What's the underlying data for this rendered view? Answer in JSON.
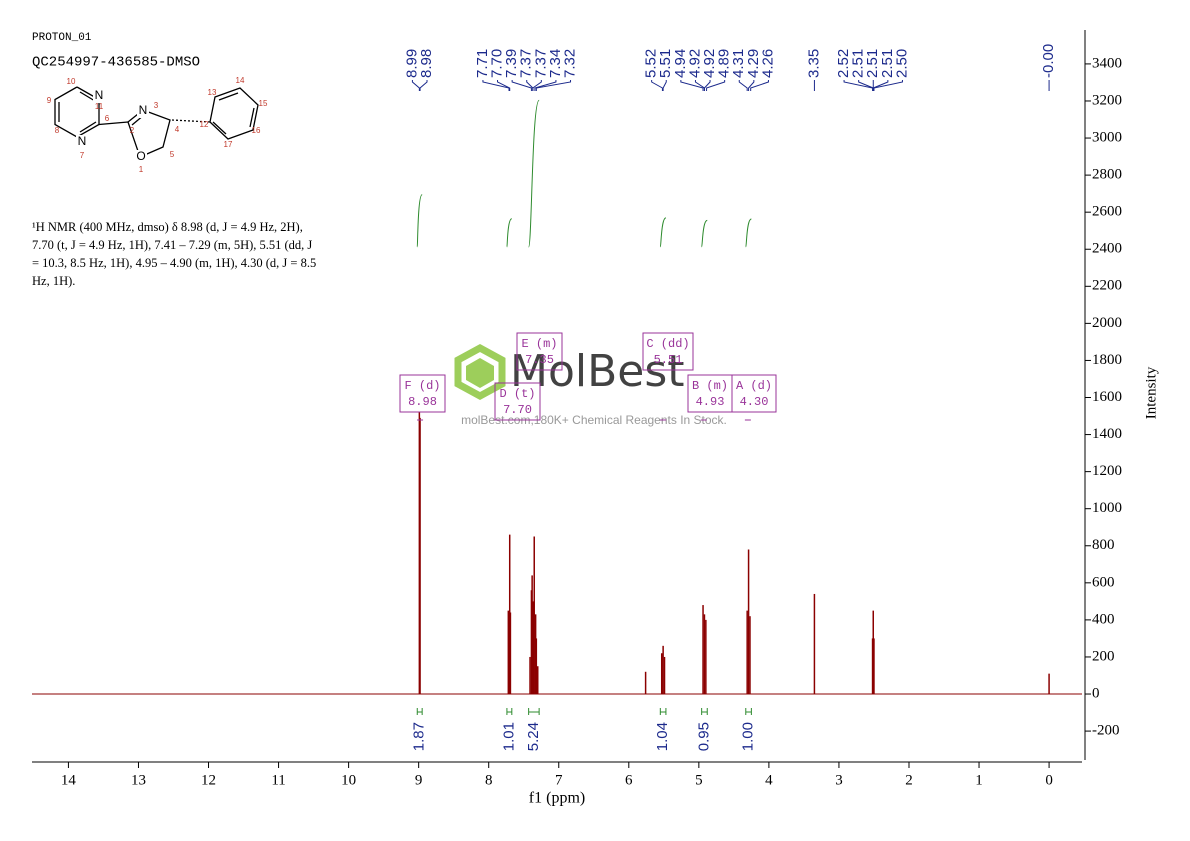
{
  "header": {
    "title": "PROTON_01",
    "sample": "QC254997-436585-DMSO"
  },
  "structure": {
    "labels": [
      "N",
      "11",
      "10",
      "9",
      "8",
      "N",
      "7",
      "6",
      "2",
      "N",
      "3",
      "4",
      "5",
      "O",
      "1",
      "12",
      "13",
      "14",
      "15",
      "16",
      "17"
    ]
  },
  "description": [
    "¹H NMR (400 MHz, dmso) δ 8.98 (d, J = 4.9 Hz, 2H),",
    "7.70 (t, J = 4.9 Hz, 1H), 7.41 – 7.29 (m, 5H), 5.51 (dd, J",
    "= 10.3, 8.5 Hz, 1H), 4.95 – 4.90 (m, 1H), 4.30 (d, J = 8.5",
    "Hz, 1H)."
  ],
  "watermark": {
    "brand": "MolBest",
    "tagline": "molBest.com,180K+ Chemical Reagents In Stock."
  },
  "chart_data": {
    "type": "spectrum",
    "xlabel": "f1 (ppm)",
    "ylabel": "Intensity",
    "xlim": [
      14.52,
      -0.47
    ],
    "ylim": [
      -356,
      3583
    ],
    "xticks": [
      14,
      13,
      12,
      11,
      10,
      9,
      8,
      7,
      6,
      5,
      4,
      3,
      2,
      1,
      0
    ],
    "yticks": [
      -200,
      0,
      200,
      400,
      600,
      800,
      1000,
      1200,
      1400,
      1600,
      1800,
      2000,
      2200,
      2400,
      2600,
      2800,
      3000,
      3200,
      3400
    ],
    "color": "#8b0000",
    "x": [
      8.99,
      8.98,
      7.72,
      7.7,
      7.69,
      7.41,
      7.39,
      7.38,
      7.37,
      7.35,
      7.33,
      7.32,
      7.3,
      5.76,
      5.53,
      5.51,
      5.49,
      4.94,
      4.92,
      4.9,
      4.31,
      4.29,
      4.27,
      3.35,
      2.52,
      2.51,
      2.5,
      0
    ],
    "values": [
      1520,
      1490,
      450,
      860,
      440,
      200,
      560,
      640,
      500,
      850,
      430,
      300,
      150,
      120,
      220,
      260,
      200,
      480,
      430,
      400,
      450,
      780,
      420,
      540,
      300,
      450,
      300,
      110
    ],
    "peak_labels": [
      8.99,
      8.98,
      7.71,
      {
        "value": 7.7,
        "label": "7.70"
      },
      7.39,
      7.37,
      7.37,
      7.34,
      7.32,
      5.52,
      5.51,
      4.94,
      4.92,
      4.92,
      4.89,
      4.31,
      4.29,
      4.26,
      3.35,
      2.52,
      2.51,
      2.51,
      2.51,
      {
        "value": 2.5,
        "label": "2.50"
      },
      {
        "value": 0,
        "label": "-0.00"
      }
    ],
    "integrals": [
      {
        "from": 9.02,
        "to": 8.95,
        "value": 1.87
      },
      {
        "from": 7.74,
        "to": 7.67,
        "value": 1.01
      },
      {
        "from": 7.43,
        "to": 7.28,
        "value": 5.24
      },
      {
        "from": 5.55,
        "to": 5.47,
        "value": 1.04
      },
      {
        "from": 4.96,
        "to": 4.88,
        "value": 0.95
      },
      {
        "from": 4.33,
        "to": 4.25,
        "value": {
          "value": 1,
          "label": "1.00"
        }
      }
    ],
    "multiplets": [
      {
        "label": "F (d)",
        "shift": 8.98
      },
      {
        "label": "D (t)",
        "shift": {
          "value": 7.7,
          "label": "7.70"
        }
      },
      {
        "label": "E (m)",
        "shift": 7.35
      },
      {
        "label": "C (dd)",
        "shift": 5.51
      },
      {
        "label": "B (m)",
        "shift": 4.93
      },
      {
        "label": "A (d)",
        "shift": {
          "value": 4.3,
          "label": "4.30"
        }
      }
    ]
  }
}
